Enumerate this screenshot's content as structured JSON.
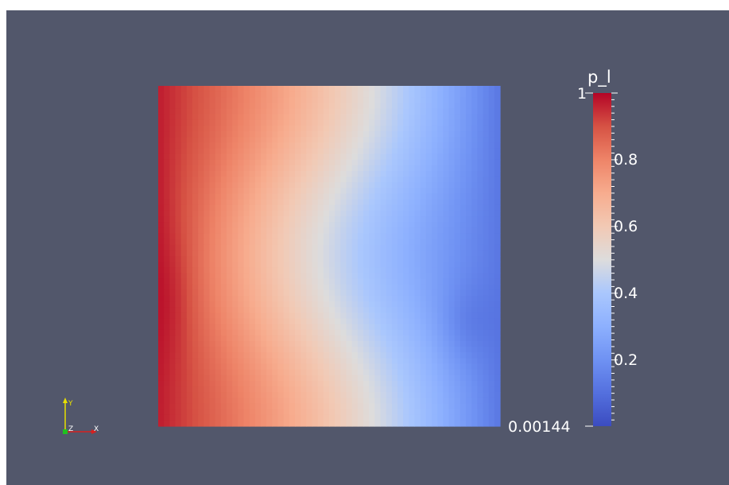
{
  "viewport": {
    "background": "#52576b"
  },
  "field": {
    "name": "p_l",
    "grid_cols": 60,
    "grid_rows": 60
  },
  "colorbar": {
    "title": "p_l",
    "min_value": 0.00144,
    "max_value": 1,
    "max_label": "1",
    "min_label": "0.00144",
    "ticks": [
      {
        "value": 0.8,
        "label": "0.8"
      },
      {
        "value": 0.6,
        "label": "0.6"
      },
      {
        "value": 0.4,
        "label": "0.4"
      },
      {
        "value": 0.2,
        "label": "0.2"
      }
    ],
    "colormap": [
      "#3b4cc0",
      "#b40426"
    ]
  },
  "axes_widget": {
    "x_label": "X",
    "y_label": "Y",
    "z_label": "Z",
    "x_color": "#d62020",
    "y_color": "#e8e000",
    "z_color": "#20c020"
  }
}
